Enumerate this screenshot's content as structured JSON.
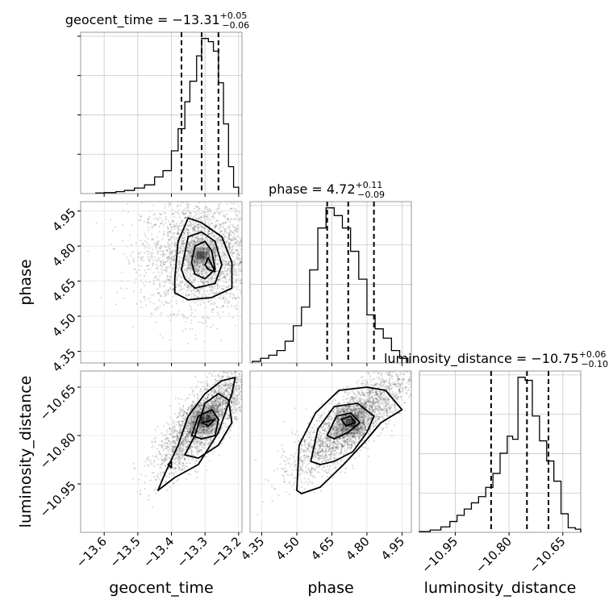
{
  "chart_data": {
    "type": "corner",
    "parameters": [
      "geocent_time",
      "phase",
      "luminosity_distance"
    ],
    "panels": [
      {
        "id": "hist-geocent_time",
        "kind": "histogram",
        "parameter": "geocent_time",
        "title": {
          "base": "geocent_time = −13.31",
          "sup": "+0.05",
          "sub": "−0.06"
        },
        "xlim": [
          -13.67,
          -13.19
        ],
        "bin_edges": [
          -13.625,
          -13.6,
          -13.565,
          -13.54,
          -13.51,
          -13.48,
          -13.45,
          -13.425,
          -13.4,
          -13.38,
          -13.36,
          -13.345,
          -13.325,
          -13.31,
          -13.29,
          -13.275,
          -13.26,
          -13.245,
          -13.23,
          -13.215,
          -13.2
        ],
        "counts": [
          0.4,
          0.6,
          1.2,
          2,
          3.5,
          5.5,
          10.5,
          14.5,
          27,
          41,
          58,
          71,
          87,
          98,
          96,
          90,
          70,
          44,
          17,
          4
        ],
        "quantiles": [
          -13.37,
          -13.31,
          -13.26
        ],
        "grid": true
      },
      {
        "id": "hist-phase",
        "kind": "histogram",
        "parameter": "phase",
        "title": {
          "base": "phase = 4.72",
          "sup": "+0.11",
          "sub": "−0.09"
        },
        "xlim": [
          4.3,
          4.99
        ],
        "bin_edges": [
          4.31,
          4.345,
          4.38,
          4.415,
          4.45,
          4.485,
          4.52,
          4.555,
          4.59,
          4.625,
          4.66,
          4.695,
          4.73,
          4.765,
          4.8,
          4.835,
          4.87,
          4.905,
          4.94,
          4.975
        ],
        "counts": [
          1,
          3,
          5,
          8,
          14,
          24,
          36,
          60,
          87,
          100,
          95,
          87,
          72,
          54,
          31,
          22,
          16,
          8,
          3
        ],
        "quantiles": [
          4.63,
          4.72,
          4.83
        ],
        "grid": true
      },
      {
        "id": "hist-luminosity_distance",
        "kind": "histogram",
        "parameter": "luminosity_distance",
        "title": {
          "base": "luminosity_distance = −10.75",
          "sup": "+0.06",
          "sub": "−0.10"
        },
        "xlim": [
          -11.05,
          -10.6
        ],
        "bin_edges": [
          -11.05,
          -11.02,
          -10.99,
          -10.965,
          -10.945,
          -10.925,
          -10.905,
          -10.885,
          -10.865,
          -10.845,
          -10.825,
          -10.805,
          -10.79,
          -10.775,
          -10.755,
          -10.735,
          -10.715,
          -10.695,
          -10.675,
          -10.655,
          -10.635,
          -10.615,
          -10.6
        ],
        "counts": [
          0.5,
          1.5,
          3.5,
          7,
          11,
          15,
          19,
          23,
          29,
          38,
          51,
          62,
          60,
          100,
          98,
          75,
          59,
          46,
          33,
          12,
          3,
          2
        ],
        "quantiles": [
          -10.85,
          -10.75,
          -10.69
        ],
        "grid": true
      },
      {
        "id": "2d-geocent_time-phase",
        "kind": "density",
        "x": "geocent_time",
        "y": "phase",
        "xlim": [
          -13.67,
          -13.19
        ],
        "ylim": [
          4.3,
          4.99
        ],
        "center": [
          -13.31,
          4.76
        ],
        "spread": [
          0.09,
          0.12
        ],
        "samples": 2600,
        "contours": [
          [
            [
              -13.39,
              4.66
            ],
            [
              -13.38,
              4.82
            ],
            [
              -13.35,
              4.92
            ],
            [
              -13.31,
              4.9
            ],
            [
              -13.25,
              4.84
            ],
            [
              -13.22,
              4.73
            ],
            [
              -13.22,
              4.62
            ],
            [
              -13.28,
              4.58
            ],
            [
              -13.35,
              4.57
            ],
            [
              -13.39,
              4.6
            ]
          ],
          [
            [
              -13.37,
              4.7
            ],
            [
              -13.35,
              4.84
            ],
            [
              -13.31,
              4.86
            ],
            [
              -13.27,
              4.82
            ],
            [
              -13.25,
              4.72
            ],
            [
              -13.27,
              4.64
            ],
            [
              -13.33,
              4.62
            ],
            [
              -13.36,
              4.66
            ]
          ],
          [
            [
              -13.34,
              4.73
            ],
            [
              -13.33,
              4.8
            ],
            [
              -13.3,
              4.82
            ],
            [
              -13.28,
              4.78
            ],
            [
              -13.27,
              4.7
            ],
            [
              -13.3,
              4.66
            ],
            [
              -13.33,
              4.68
            ]
          ],
          [
            [
              -13.3,
              4.72
            ],
            [
              -13.29,
              4.75
            ],
            [
              -13.28,
              4.72
            ],
            [
              -13.27,
              4.69
            ],
            [
              -13.29,
              4.7
            ]
          ]
        ]
      },
      {
        "id": "2d-geocent_time-luminosity_distance",
        "kind": "density",
        "x": "geocent_time",
        "y": "luminosity_distance",
        "xlim": [
          -13.67,
          -13.19
        ],
        "ylim": [
          -11.1,
          -10.6
        ],
        "center": [
          -13.3,
          -10.75
        ],
        "spread": [
          0.07,
          0.08
        ],
        "correlated": true,
        "samples": 2600,
        "contours": [
          [
            [
              -13.44,
              -10.97
            ],
            [
              -13.39,
              -10.93
            ],
            [
              -13.32,
              -10.89
            ],
            [
              -13.26,
              -10.79
            ],
            [
              -13.22,
              -10.67
            ],
            [
              -13.21,
              -10.62
            ],
            [
              -13.25,
              -10.63
            ],
            [
              -13.3,
              -10.67
            ],
            [
              -13.35,
              -10.74
            ],
            [
              -13.38,
              -10.83
            ],
            [
              -13.42,
              -10.92
            ]
          ],
          [
            [
              -13.36,
              -10.86
            ],
            [
              -13.33,
              -10.8
            ],
            [
              -13.3,
              -10.7
            ],
            [
              -13.26,
              -10.67
            ],
            [
              -13.23,
              -10.69
            ],
            [
              -13.22,
              -10.76
            ],
            [
              -13.26,
              -10.83
            ],
            [
              -13.32,
              -10.87
            ]
          ],
          [
            [
              -13.34,
              -10.8
            ],
            [
              -13.32,
              -10.74
            ],
            [
              -13.28,
              -10.72
            ],
            [
              -13.26,
              -10.75
            ],
            [
              -13.27,
              -10.8
            ],
            [
              -13.31,
              -10.81
            ]
          ],
          [
            [
              -13.31,
              -10.76
            ],
            [
              -13.27,
              -10.75
            ],
            [
              -13.29,
              -10.77
            ]
          ],
          [
            [
              -13.41,
              -10.89
            ],
            [
              -13.4,
              -10.88
            ],
            [
              -13.4,
              -10.9
            ]
          ]
        ]
      },
      {
        "id": "2d-phase-luminosity_distance",
        "kind": "density",
        "x": "phase",
        "y": "luminosity_distance",
        "xlim": [
          4.3,
          4.99
        ],
        "ylim": [
          -11.1,
          -10.6
        ],
        "center": [
          4.73,
          -10.76
        ],
        "spread": [
          0.12,
          0.08
        ],
        "correlated": true,
        "samples": 2600,
        "contours": [
          [
            [
              4.5,
              -10.97
            ],
            [
              4.51,
              -10.83
            ],
            [
              4.58,
              -10.73
            ],
            [
              4.68,
              -10.66
            ],
            [
              4.8,
              -10.65
            ],
            [
              4.88,
              -10.66
            ],
            [
              4.95,
              -10.72
            ],
            [
              4.86,
              -10.76
            ],
            [
              4.79,
              -10.82
            ],
            [
              4.7,
              -10.89
            ],
            [
              4.6,
              -10.96
            ],
            [
              4.52,
              -10.98
            ]
          ],
          [
            [
              4.56,
              -10.88
            ],
            [
              4.59,
              -10.78
            ],
            [
              4.66,
              -10.71
            ],
            [
              4.76,
              -10.7
            ],
            [
              4.83,
              -10.74
            ],
            [
              4.8,
              -10.79
            ],
            [
              4.74,
              -10.85
            ],
            [
              4.66,
              -10.88
            ],
            [
              4.6,
              -10.89
            ]
          ],
          [
            [
              4.63,
              -10.8
            ],
            [
              4.67,
              -10.74
            ],
            [
              4.73,
              -10.73
            ],
            [
              4.77,
              -10.76
            ],
            [
              4.72,
              -10.79
            ],
            [
              4.66,
              -10.81
            ]
          ],
          [
            [
              4.69,
              -10.75
            ],
            [
              4.73,
              -10.74
            ],
            [
              4.75,
              -10.76
            ],
            [
              4.71,
              -10.77
            ]
          ]
        ]
      }
    ],
    "ticks": {
      "geocent_time": [
        "−13.6",
        "−13.5",
        "−13.4",
        "−13.3",
        "−13.2"
      ],
      "geocent_time_values": [
        -13.6,
        -13.5,
        -13.4,
        -13.3,
        -13.2
      ],
      "phase": [
        "4.35",
        "4.50",
        "4.65",
        "4.80",
        "4.95"
      ],
      "phase_values": [
        4.35,
        4.5,
        4.65,
        4.8,
        4.95
      ],
      "luminosity_distance": [
        "−10.95",
        "−10.80",
        "−10.65"
      ],
      "luminosity_distance_values": [
        -10.95,
        -10.8,
        -10.65
      ]
    },
    "axis_labels": {
      "x": [
        "geocent_time",
        "phase",
        "luminosity_distance"
      ],
      "y": [
        "phase",
        "luminosity_distance"
      ]
    }
  }
}
